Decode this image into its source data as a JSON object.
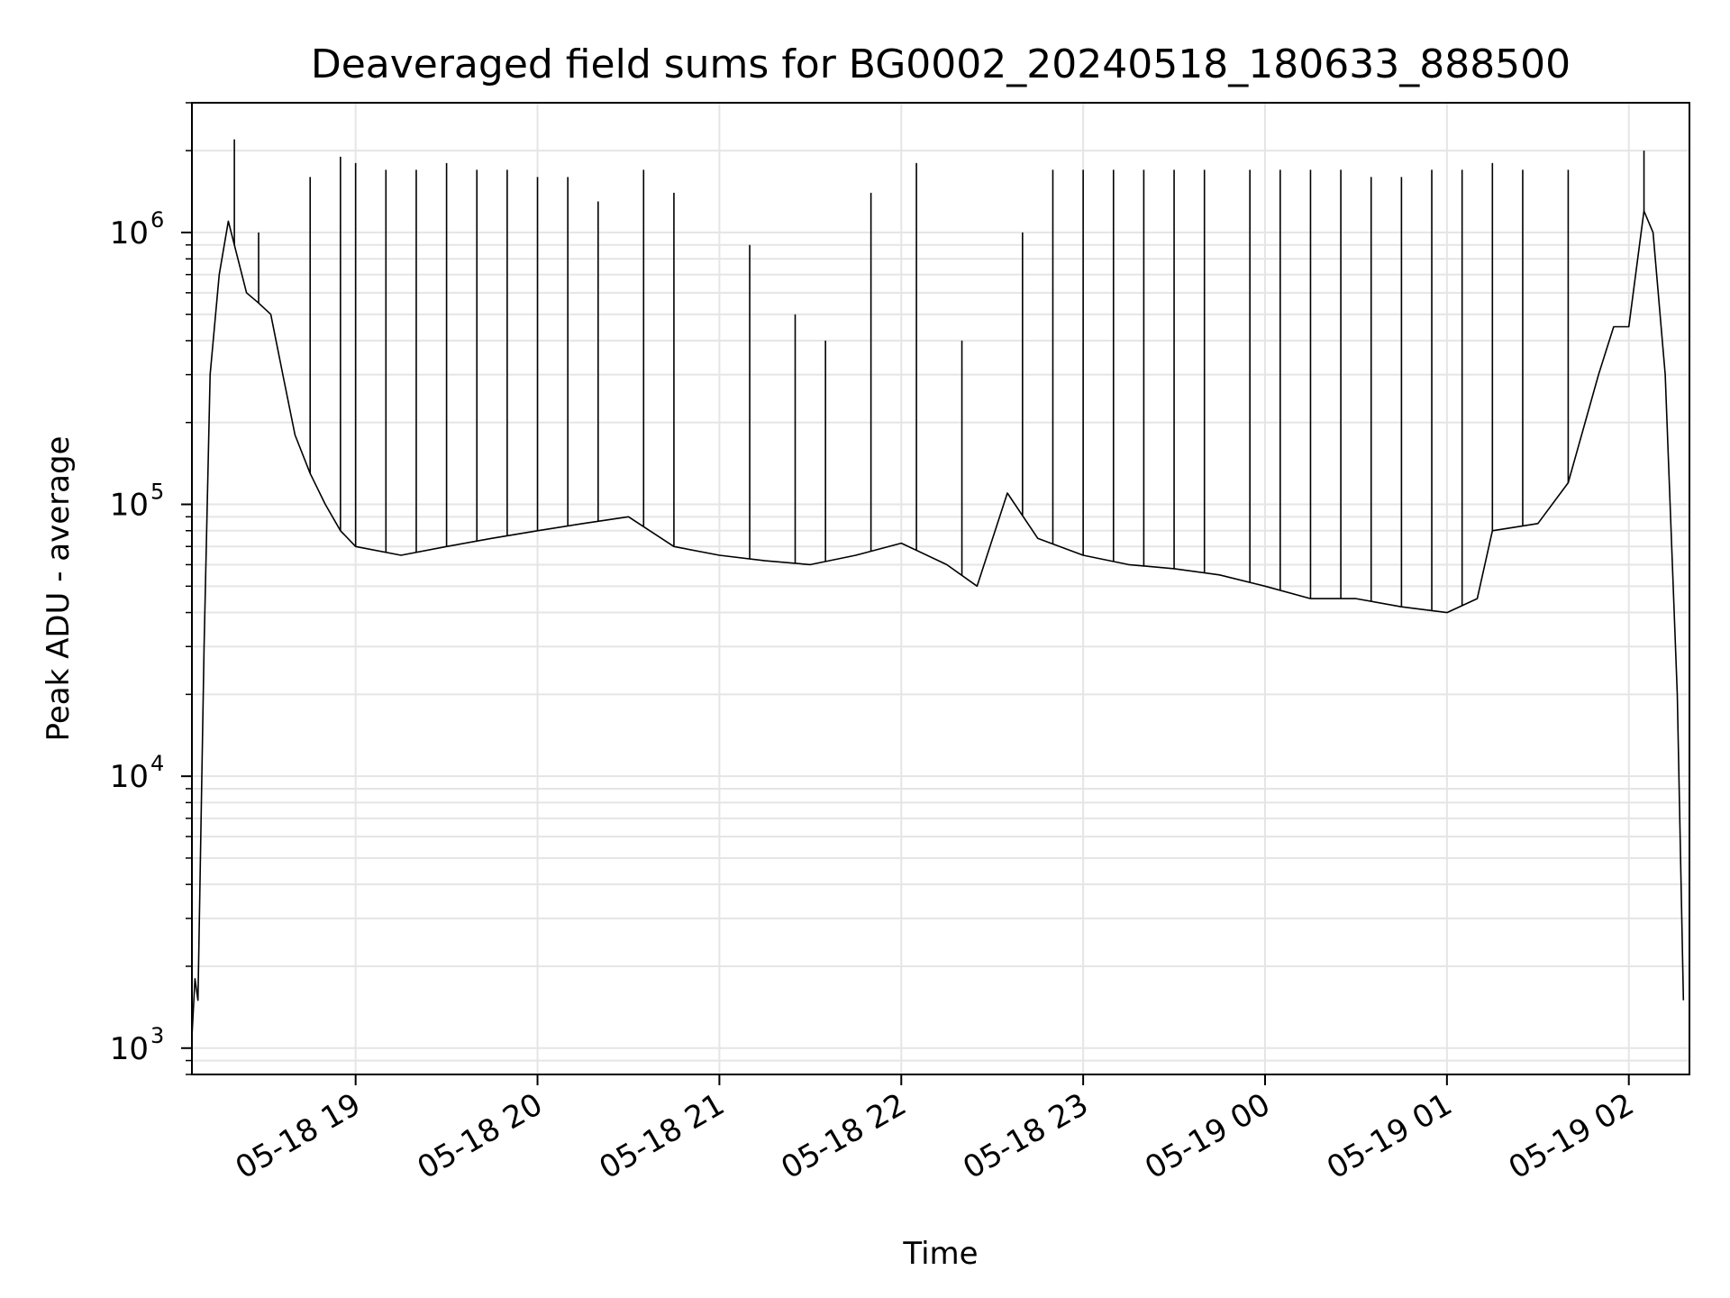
{
  "chart_data": {
    "type": "line",
    "title": "Deaveraged field sums for BG0002_20240518_180633_888500",
    "xlabel": "Time",
    "ylabel": "Peak ADU - average",
    "yscale": "log",
    "ylim": [
      800,
      3000000
    ],
    "xlim": [
      "2024-05-18 18:06",
      "2024-05-19 02:20"
    ],
    "grid": true,
    "line_color": "#000000",
    "grid_color": "#e5e5e5",
    "x_ticks": [
      {
        "t": "2024-05-18 19:00",
        "label": "05-18 19"
      },
      {
        "t": "2024-05-18 20:00",
        "label": "05-18 20"
      },
      {
        "t": "2024-05-18 21:00",
        "label": "05-18 21"
      },
      {
        "t": "2024-05-18 22:00",
        "label": "05-18 22"
      },
      {
        "t": "2024-05-18 23:00",
        "label": "05-18 23"
      },
      {
        "t": "2024-05-19 00:00",
        "label": "05-19 00"
      },
      {
        "t": "2024-05-19 01:00",
        "label": "05-19 01"
      },
      {
        "t": "2024-05-19 02:00",
        "label": "05-19 02"
      }
    ],
    "y_ticks": [
      {
        "value": 1000,
        "base": "10",
        "exp": "3"
      },
      {
        "value": 10000,
        "base": "10",
        "exp": "4"
      },
      {
        "value": 100000,
        "base": "10",
        "exp": "5"
      },
      {
        "value": 1000000,
        "base": "10",
        "exp": "6"
      }
    ],
    "series": [
      {
        "points": [
          [
            "2024-05-18 18:06",
            1100
          ],
          [
            "2024-05-18 18:07",
            1800
          ],
          [
            "2024-05-18 18:08",
            1500
          ],
          [
            "2024-05-18 18:10",
            30000
          ],
          [
            "2024-05-18 18:12",
            300000
          ],
          [
            "2024-05-18 18:15",
            700000
          ],
          [
            "2024-05-18 18:18",
            1100000
          ],
          [
            "2024-05-18 18:20",
            900000
          ],
          [
            "2024-05-18 18:24",
            600000
          ],
          [
            "2024-05-18 18:28",
            550000
          ],
          [
            "2024-05-18 18:32",
            500000
          ],
          [
            "2024-05-18 18:36",
            300000
          ],
          [
            "2024-05-18 18:40",
            180000
          ],
          [
            "2024-05-18 18:45",
            130000
          ],
          [
            "2024-05-18 18:50",
            100000
          ],
          [
            "2024-05-18 18:55",
            80000
          ],
          [
            "2024-05-18 19:00",
            70000
          ],
          [
            "2024-05-18 19:15",
            65000
          ],
          [
            "2024-05-18 19:30",
            70000
          ],
          [
            "2024-05-18 19:45",
            75000
          ],
          [
            "2024-05-18 20:00",
            80000
          ],
          [
            "2024-05-18 20:15",
            85000
          ],
          [
            "2024-05-18 20:30",
            90000
          ],
          [
            "2024-05-18 20:45",
            70000
          ],
          [
            "2024-05-18 21:00",
            65000
          ],
          [
            "2024-05-18 21:15",
            62000
          ],
          [
            "2024-05-18 21:30",
            60000
          ],
          [
            "2024-05-18 21:45",
            65000
          ],
          [
            "2024-05-18 22:00",
            72000
          ],
          [
            "2024-05-18 22:15",
            60000
          ],
          [
            "2024-05-18 22:25",
            50000
          ],
          [
            "2024-05-18 22:35",
            110000
          ],
          [
            "2024-05-18 22:45",
            75000
          ],
          [
            "2024-05-18 23:00",
            65000
          ],
          [
            "2024-05-18 23:15",
            60000
          ],
          [
            "2024-05-18 23:30",
            58000
          ],
          [
            "2024-05-18 23:45",
            55000
          ],
          [
            "2024-05-19 00:00",
            50000
          ],
          [
            "2024-05-19 00:15",
            45000
          ],
          [
            "2024-05-19 00:30",
            45000
          ],
          [
            "2024-05-19 00:45",
            42000
          ],
          [
            "2024-05-19 01:00",
            40000
          ],
          [
            "2024-05-19 01:10",
            45000
          ],
          [
            "2024-05-19 01:15",
            80000
          ],
          [
            "2024-05-19 01:30",
            85000
          ],
          [
            "2024-05-19 01:40",
            120000
          ],
          [
            "2024-05-19 01:50",
            300000
          ],
          [
            "2024-05-19 01:55",
            450000
          ],
          [
            "2024-05-19 02:00",
            450000
          ],
          [
            "2024-05-19 02:05",
            1200000
          ],
          [
            "2024-05-19 02:08",
            1000000
          ],
          [
            "2024-05-19 02:12",
            300000
          ],
          [
            "2024-05-19 02:16",
            20000
          ],
          [
            "2024-05-19 02:18",
            1500
          ]
        ],
        "spikes": [
          [
            "2024-05-18 18:20",
            2200000
          ],
          [
            "2024-05-18 18:28",
            1000000
          ],
          [
            "2024-05-18 18:45",
            1600000
          ],
          [
            "2024-05-18 18:55",
            1900000
          ],
          [
            "2024-05-18 19:00",
            1800000
          ],
          [
            "2024-05-18 19:10",
            1700000
          ],
          [
            "2024-05-18 19:20",
            1700000
          ],
          [
            "2024-05-18 19:30",
            1800000
          ],
          [
            "2024-05-18 19:40",
            1700000
          ],
          [
            "2024-05-18 19:50",
            1700000
          ],
          [
            "2024-05-18 20:00",
            1600000
          ],
          [
            "2024-05-18 20:10",
            1600000
          ],
          [
            "2024-05-18 20:20",
            1300000
          ],
          [
            "2024-05-18 20:35",
            1700000
          ],
          [
            "2024-05-18 20:45",
            1400000
          ],
          [
            "2024-05-18 21:10",
            900000
          ],
          [
            "2024-05-18 21:25",
            500000
          ],
          [
            "2024-05-18 21:35",
            400000
          ],
          [
            "2024-05-18 21:50",
            1400000
          ],
          [
            "2024-05-18 22:05",
            1800000
          ],
          [
            "2024-05-18 22:20",
            400000
          ],
          [
            "2024-05-18 22:40",
            1000000
          ],
          [
            "2024-05-18 22:50",
            1700000
          ],
          [
            "2024-05-18 23:00",
            1700000
          ],
          [
            "2024-05-18 23:10",
            1700000
          ],
          [
            "2024-05-18 23:20",
            1700000
          ],
          [
            "2024-05-18 23:30",
            1700000
          ],
          [
            "2024-05-18 23:40",
            1700000
          ],
          [
            "2024-05-18 23:55",
            1700000
          ],
          [
            "2024-05-19 00:05",
            1700000
          ],
          [
            "2024-05-19 00:15",
            1700000
          ],
          [
            "2024-05-19 00:25",
            1700000
          ],
          [
            "2024-05-19 00:35",
            1600000
          ],
          [
            "2024-05-19 00:45",
            1600000
          ],
          [
            "2024-05-19 00:55",
            1700000
          ],
          [
            "2024-05-19 01:05",
            1700000
          ],
          [
            "2024-05-19 01:15",
            1800000
          ],
          [
            "2024-05-19 01:25",
            1700000
          ],
          [
            "2024-05-19 01:40",
            1700000
          ],
          [
            "2024-05-19 02:05",
            2000000
          ]
        ]
      }
    ]
  }
}
